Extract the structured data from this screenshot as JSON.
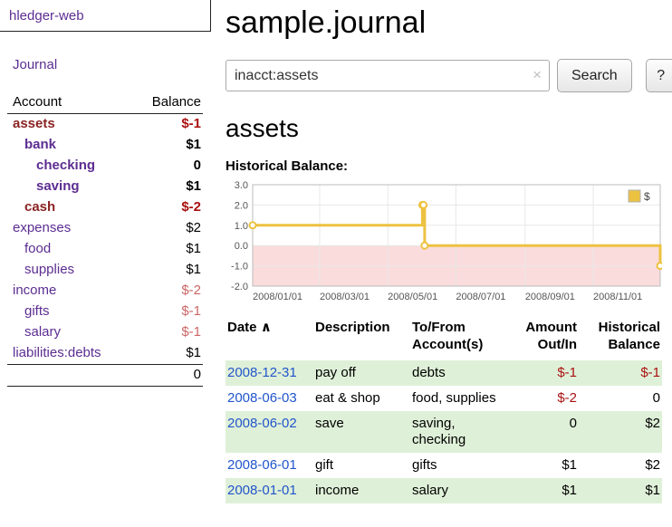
{
  "colors": {
    "link_purple": "#5c2d91",
    "link_blue": "#2255cc",
    "maroon": "#8b2323",
    "neg_red": "#aa1111",
    "neg_light": "#cc6666",
    "row_green": "#dff0d8",
    "divider": "#222222",
    "chart_line": "#edc240",
    "chart_negative_region": "#fadcdc",
    "chart_grid": "#e8e8e8",
    "chart_border": "#bbbbbb",
    "chart_text": "#555555"
  },
  "sidebar": {
    "app_title": "hledger-web",
    "journal_label": "Journal",
    "accounts": {
      "header_account": "Account",
      "header_balance": "Balance",
      "rows": [
        {
          "name": "assets",
          "balance": "$-1",
          "indent": 0,
          "bold": true,
          "name_style": "maroon",
          "balance_style": "neg"
        },
        {
          "name": "bank",
          "balance": "$1",
          "indent": 1,
          "bold": true,
          "name_style": "purple",
          "balance_style": "normal"
        },
        {
          "name": "checking",
          "balance": "0",
          "indent": 2,
          "bold": true,
          "name_style": "purple",
          "balance_style": "normal"
        },
        {
          "name": "saving",
          "balance": "$1",
          "indent": 2,
          "bold": true,
          "name_style": "purple",
          "balance_style": "normal"
        },
        {
          "name": "cash",
          "balance": "$-2",
          "indent": 1,
          "bold": true,
          "name_style": "maroon",
          "balance_style": "neg"
        },
        {
          "name": "expenses",
          "balance": "$2",
          "indent": 0,
          "bold": false,
          "name_style": "purple",
          "balance_style": "normal"
        },
        {
          "name": "food",
          "balance": "$1",
          "indent": 1,
          "bold": false,
          "name_style": "purple",
          "balance_style": "normal"
        },
        {
          "name": "supplies",
          "balance": "$1",
          "indent": 1,
          "bold": false,
          "name_style": "purple",
          "balance_style": "normal"
        },
        {
          "name": "income",
          "balance": "$-2",
          "indent": 0,
          "bold": false,
          "name_style": "purple",
          "balance_style": "neg-light"
        },
        {
          "name": "gifts",
          "balance": "$-1",
          "indent": 1,
          "bold": false,
          "name_style": "purple",
          "balance_style": "neg-light"
        },
        {
          "name": "salary",
          "balance": "$-1",
          "indent": 1,
          "bold": false,
          "name_style": "purple",
          "balance_style": "neg-light"
        },
        {
          "name": "liabilities:debts",
          "balance": "$1",
          "indent": 0,
          "bold": false,
          "name_style": "purple",
          "balance_style": "normal"
        }
      ],
      "total": "0"
    }
  },
  "main": {
    "title": "sample.journal",
    "search": {
      "value": "inacct:assets",
      "clear_icon": "×",
      "search_button": "Search",
      "help_button": "?"
    },
    "account_heading": "assets",
    "chart_title": "Historical Balance:"
  },
  "chart_data": {
    "type": "line",
    "step": true,
    "title": "Historical Balance:",
    "xlabel": "",
    "ylabel": "",
    "ylim": [
      -2,
      3
    ],
    "x_start": "2008-01-01",
    "x_end": "2008-12-31",
    "y_ticks": [
      3.0,
      2.0,
      1.0,
      0.0,
      -1.0,
      -2.0
    ],
    "x_ticks": [
      {
        "date": "2008-01-01",
        "label": "2008/01/01"
      },
      {
        "date": "2008-03-01",
        "label": "2008/03/01"
      },
      {
        "date": "2008-05-01",
        "label": "2008/05/01"
      },
      {
        "date": "2008-07-01",
        "label": "2008/07/01"
      },
      {
        "date": "2008-09-01",
        "label": "2008/09/01"
      },
      {
        "date": "2008-11-01",
        "label": "2008/11/01"
      }
    ],
    "legend": {
      "label": "$",
      "position": "top-right"
    },
    "grid": true,
    "negative_region_below": 0,
    "series": [
      {
        "name": "$",
        "points": [
          [
            "2008-01-01",
            1
          ],
          [
            "2008-06-01",
            2
          ],
          [
            "2008-06-02",
            2
          ],
          [
            "2008-06-03",
            0
          ],
          [
            "2008-12-31",
            -1
          ]
        ]
      }
    ]
  },
  "register_table": {
    "headers": {
      "date": "Date",
      "sort_icon": "∧",
      "description": "Description",
      "accounts": "To/From Account(s)",
      "amount": "Amount Out/In",
      "balance": "Historical Balance"
    },
    "rows": [
      {
        "date": "2008-12-31",
        "description": "pay off",
        "accounts": "debts",
        "amount": "$-1",
        "balance": "$-1",
        "amount_neg": true,
        "balance_neg": true,
        "shaded": true
      },
      {
        "date": "2008-06-03",
        "description": "eat & shop",
        "accounts": "food, supplies",
        "amount": "$-2",
        "balance": "0",
        "amount_neg": true,
        "balance_neg": false,
        "shaded": false
      },
      {
        "date": "2008-06-02",
        "description": "save",
        "accounts": "saving, checking",
        "amount": "0",
        "balance": "$2",
        "amount_neg": false,
        "balance_neg": false,
        "shaded": true
      },
      {
        "date": "2008-06-01",
        "description": "gift",
        "accounts": "gifts",
        "amount": "$1",
        "balance": "$2",
        "amount_neg": false,
        "balance_neg": false,
        "shaded": false
      },
      {
        "date": "2008-01-01",
        "description": "income",
        "accounts": "salary",
        "amount": "$1",
        "balance": "$1",
        "amount_neg": false,
        "balance_neg": false,
        "shaded": true
      }
    ]
  }
}
